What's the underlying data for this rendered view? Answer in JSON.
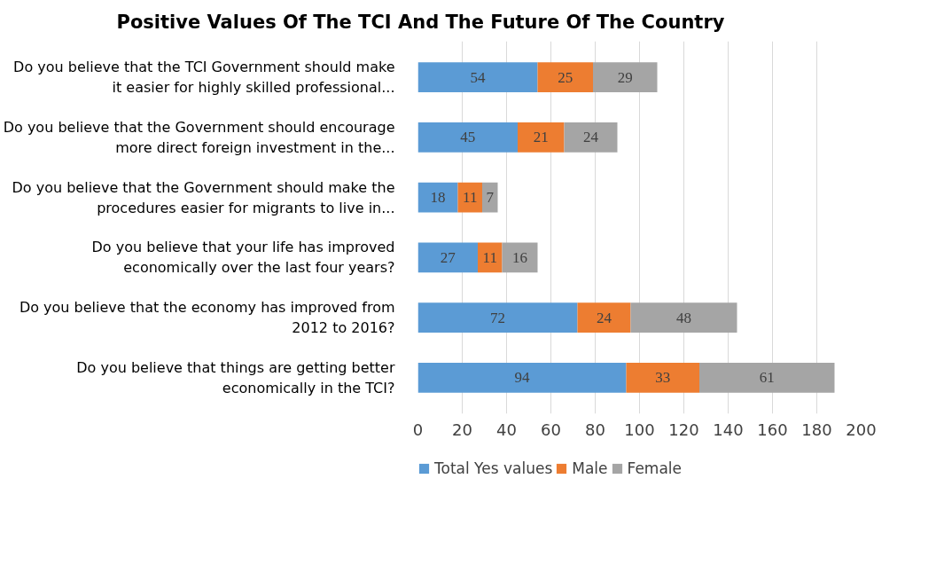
{
  "chart_data": {
    "type": "bar",
    "orientation": "horizontal",
    "stacked": true,
    "title": "Positive Values Of The TCI And The Future Of The Country",
    "categories": [
      "Do you believe that the TCI Government should make it easier for highly skilled professional...",
      "Do you believe that the Government should encourage more direct foreign investment in the...",
      "Do you believe that the Government should make the procedures easier for migrants to live in...",
      "Do you believe that your life has improved economically over the last four years?",
      "Do you believe that the economy has improved from 2012 to 2016?",
      "Do you believe that things are getting better economically in the TCI?"
    ],
    "series": [
      {
        "name": "Total Yes values",
        "color": "#5b9bd5",
        "values": [
          54,
          45,
          18,
          27,
          72,
          94
        ]
      },
      {
        "name": "Male",
        "color": "#ed7d31",
        "values": [
          25,
          21,
          11,
          11,
          24,
          33
        ]
      },
      {
        "name": "Female",
        "color": "#a5a5a5",
        "values": [
          29,
          24,
          7,
          16,
          48,
          61
        ]
      }
    ],
    "xlim": [
      0,
      200
    ],
    "xticks": [
      0,
      20,
      40,
      60,
      80,
      100,
      120,
      140,
      160,
      180,
      200
    ],
    "grid": "x",
    "legend": "bottom",
    "data_labels": true
  }
}
